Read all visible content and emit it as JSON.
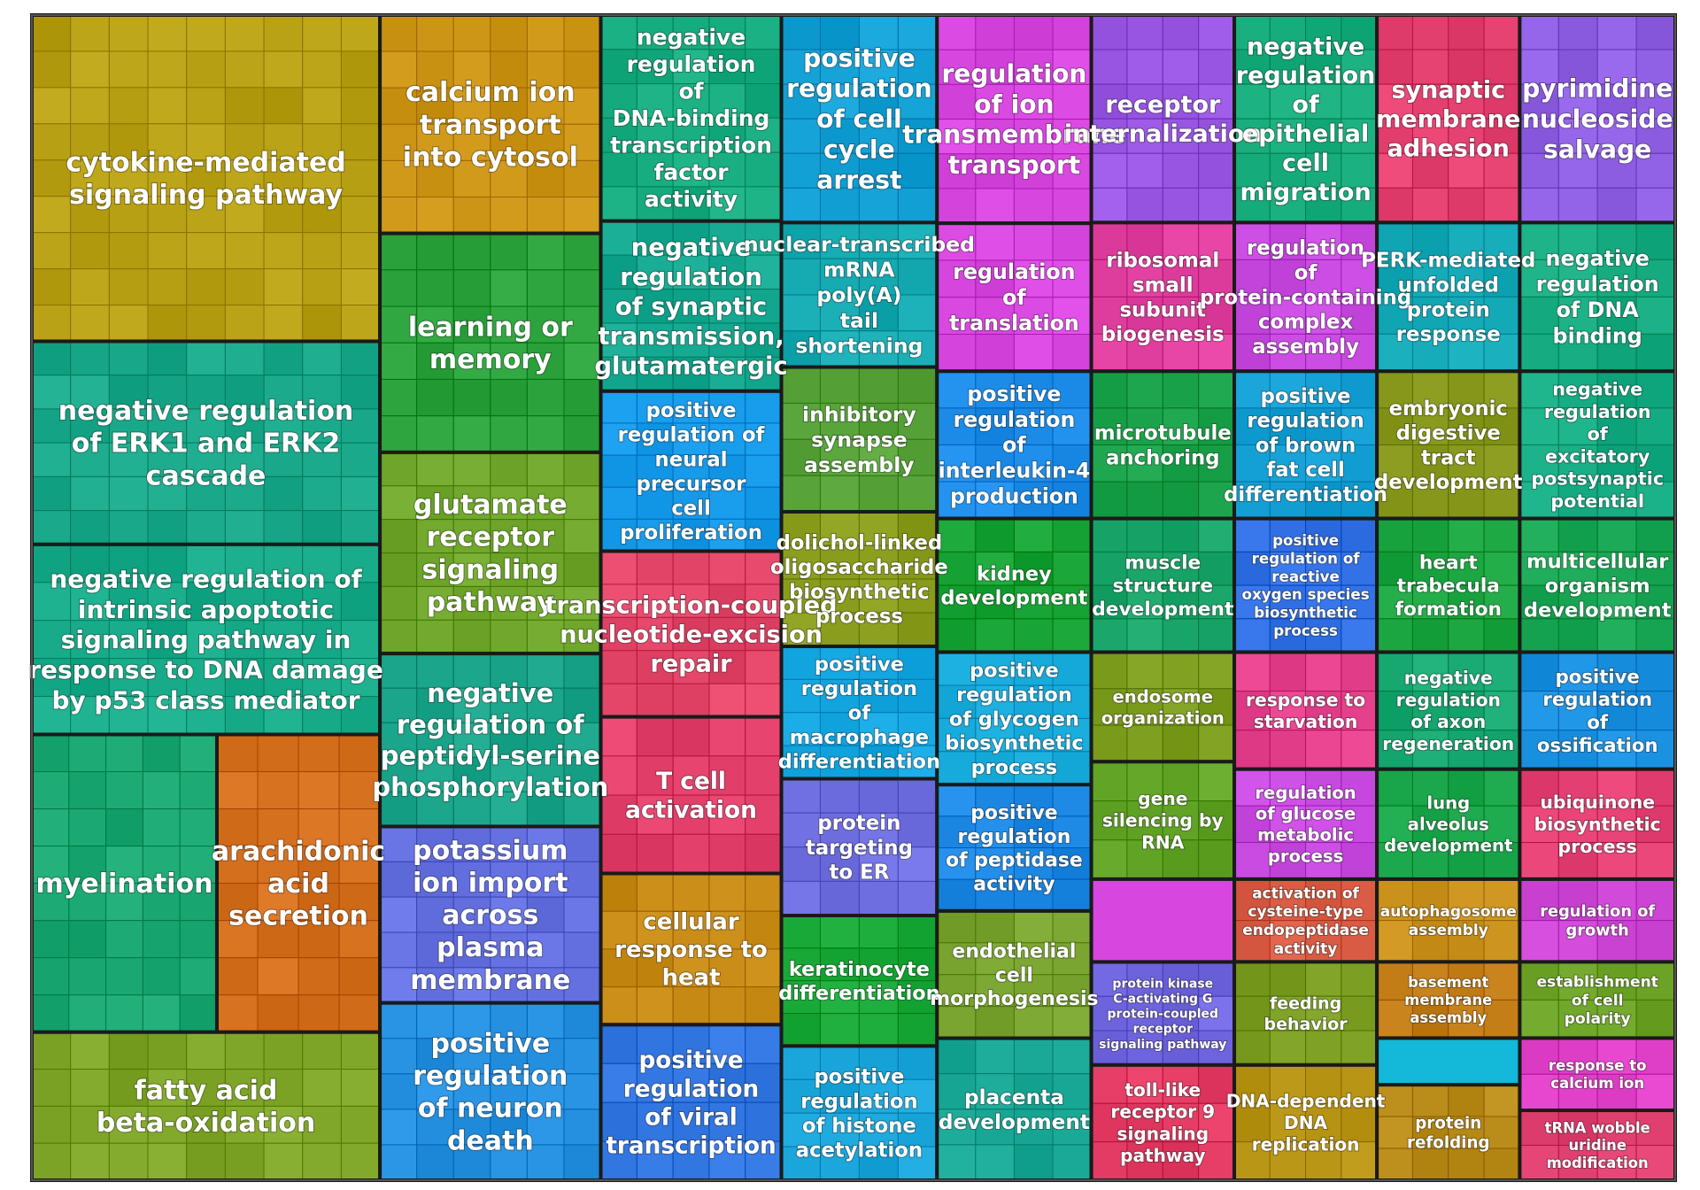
{
  "chart_data": {
    "type": "treemap",
    "title": "",
    "groups": [
      {
        "label": "cytokine-mediated signaling pathway",
        "color": "#b8a014",
        "rect": [
          0.0,
          0.0,
          0.2118,
          0.28
        ]
      },
      {
        "label": "negative regulation of ERK1 and ERK2 cascade",
        "color": "#1aa88a",
        "rect": [
          0.0,
          0.28,
          0.2118,
          0.4543
        ]
      },
      {
        "label": "negative regulation of intrinsic apoptotic signaling pathway in response to DNA damage by p53 class mediator",
        "color": "#17ab8a",
        "rect": [
          0.0,
          0.4543,
          0.2118,
          0.6174
        ]
      },
      {
        "label": "myelination",
        "color": "#1aa772",
        "rect": [
          0.0,
          0.6174,
          0.1126,
          0.8729
        ]
      },
      {
        "label": "arachidonic acid secretion",
        "color": "#d5701e",
        "rect": [
          0.1126,
          0.6174,
          0.2118,
          0.8729
        ]
      },
      {
        "label": "fatty acid beta-oxidation",
        "color": "#7fa528",
        "rect": [
          0.0,
          0.8729,
          0.2118,
          1.0
        ]
      },
      {
        "label": "calcium ion transport into cytosol",
        "color": "#cb9314",
        "rect": [
          0.2118,
          0.0,
          0.3462,
          0.1874
        ]
      },
      {
        "label": "learning or memory",
        "color": "#2ca23c",
        "rect": [
          0.2118,
          0.1874,
          0.3462,
          0.3753
        ]
      },
      {
        "label": "glutamate receptor signaling pathway",
        "color": "#6ea52a",
        "rect": [
          0.2118,
          0.3753,
          0.3462,
          0.548
        ]
      },
      {
        "label": "negative regulation of peptidyl-serine phosphorylation",
        "color": "#1aa48a",
        "rect": [
          0.2118,
          0.548,
          0.3462,
          0.6964
        ]
      },
      {
        "label": "potassium ion import across plasma membrane",
        "color": "#6672e2",
        "rect": [
          0.2118,
          0.6964,
          0.3462,
          0.8478
        ]
      },
      {
        "label": "positive regulation of neuron death",
        "color": "#2590e0",
        "rect": [
          0.2118,
          0.8478,
          0.3462,
          1.0
        ]
      },
      {
        "label": "negative regulation of DNA-binding transcription factor activity",
        "color": "#16ac80",
        "rect": [
          0.3462,
          0.0,
          0.4561,
          0.1768
        ]
      },
      {
        "label": "negative regulation of synaptic transmission, glutamatergic",
        "color": "#14a890",
        "rect": [
          0.3462,
          0.1768,
          0.4561,
          0.3228
        ]
      },
      {
        "label": "positive regulation of neural precursor cell proliferation",
        "color": "#1498e8",
        "rect": [
          0.3462,
          0.3228,
          0.4561,
          0.4601
        ]
      },
      {
        "label": "transcription-coupled nucleotide-excision repair",
        "color": "#e4466a",
        "rect": [
          0.3462,
          0.4601,
          0.4561,
          0.6023
        ]
      },
      {
        "label": "T cell activation",
        "color": "#e4406c",
        "rect": [
          0.3462,
          0.6023,
          0.4561,
          0.7367
        ]
      },
      {
        "label": "cellular response to heat",
        "color": "#c78a14",
        "rect": [
          0.3462,
          0.7367,
          0.4561,
          0.8665
        ]
      },
      {
        "label": "positive regulation of viral transcription",
        "color": "#3478e4",
        "rect": [
          0.3462,
          0.8665,
          0.4561,
          1.0
        ]
      },
      {
        "label": "positive regulation of cell cycle arrest",
        "color": "#129fd4",
        "rect": [
          0.4561,
          0.0,
          0.5508,
          0.1781
        ]
      },
      {
        "label": "nuclear-transcribed mRNA poly(A) tail shortening",
        "color": "#14a8b0",
        "rect": [
          0.4561,
          0.1781,
          0.5508,
          0.3021
        ]
      },
      {
        "label": "inhibitory synapse assembly",
        "color": "#58a43a",
        "rect": [
          0.4561,
          0.3021,
          0.5508,
          0.4263
        ]
      },
      {
        "label": "dolichol-linked oligosaccharide biosynthetic process",
        "color": "#8a9c1c",
        "rect": [
          0.4561,
          0.4263,
          0.5508,
          0.5418
        ]
      },
      {
        "label": "positive regulation of macrophage differentiation",
        "color": "#14a6e0",
        "rect": [
          0.4561,
          0.5418,
          0.5508,
          0.6554
        ]
      },
      {
        "label": "protein targeting to ER",
        "color": "#7070e2",
        "rect": [
          0.4561,
          0.6554,
          0.5508,
          0.7728
        ]
      },
      {
        "label": "keratinocyte differentiation",
        "color": "#18a838",
        "rect": [
          0.4561,
          0.7728,
          0.5508,
          0.8848
        ]
      },
      {
        "label": "positive regulation of histone acetylation",
        "color": "#18a4d8",
        "rect": [
          0.4561,
          0.8848,
          0.5508,
          1.0
        ]
      },
      {
        "label": "regulation of ion transmembrane transport",
        "color": "#d846e0",
        "rect": [
          0.5508,
          0.0,
          0.6447,
          0.1787
        ]
      },
      {
        "label": "regulation of translation",
        "color": "#d846e0",
        "rect": [
          0.5508,
          0.1787,
          0.6447,
          0.3057
        ]
      },
      {
        "label": "positive regulation of interleukin-4 production",
        "color": "#1c8ce8",
        "rect": [
          0.5508,
          0.3057,
          0.6447,
          0.4321
        ]
      },
      {
        "label": "kidney development",
        "color": "#16a234",
        "rect": [
          0.5508,
          0.4321,
          0.6447,
          0.5468
        ]
      },
      {
        "label": "positive regulation of glycogen biosynthetic process",
        "color": "#14a8d8",
        "rect": [
          0.5508,
          0.5468,
          0.6447,
          0.6605
        ]
      },
      {
        "label": "positive regulation of peptidase activity",
        "color": "#1c88e4",
        "rect": [
          0.5508,
          0.6605,
          0.6447,
          0.7689
        ]
      },
      {
        "label": "endothelial cell morphogenesis",
        "color": "#7aa530",
        "rect": [
          0.5508,
          0.7689,
          0.6447,
          0.8781
        ]
      },
      {
        "label": "placenta development",
        "color": "#1aa896",
        "rect": [
          0.5508,
          0.8781,
          0.6447,
          1.0
        ]
      },
      {
        "label": "receptor internalization",
        "color": "#9a58e4",
        "rect": [
          0.6447,
          0.0,
          0.7317,
          0.1781
        ]
      },
      {
        "label": "ribosomal small subunit biogenesis",
        "color": "#e240a0",
        "rect": [
          0.6447,
          0.1781,
          0.7317,
          0.3057
        ]
      },
      {
        "label": "microtubule anchoring",
        "color": "#1aa24a",
        "rect": [
          0.6447,
          0.3057,
          0.7317,
          0.4321
        ]
      },
      {
        "label": "muscle structure development",
        "color": "#1aa66a",
        "rect": [
          0.6447,
          0.4321,
          0.7317,
          0.5468
        ]
      },
      {
        "label": "endosome organization",
        "color": "#7c9c1e",
        "rect": [
          0.6447,
          0.5468,
          0.7317,
          0.6408
        ]
      },
      {
        "label": "gene silencing by RNA",
        "color": "#62a426",
        "rect": [
          0.6447,
          0.6408,
          0.7317,
          0.7416
        ]
      },
      {
        "label": "protein kinase C-activating G protein-coupled receptor signaling pathway",
        "color": "#7268e2",
        "rect": [
          0.6447,
          0.8126,
          0.7317,
          0.9011
        ]
      },
      {
        "label": "toll-like receptor 9 signaling pathway",
        "color": "#e43c64",
        "rect": [
          0.6447,
          0.9011,
          0.7317,
          1.0
        ]
      },
      {
        "label": "negative regulation of epithelial cell migration",
        "color": "#16ab7a",
        "rect": [
          0.7317,
          0.0,
          0.8185,
          0.1781
        ]
      },
      {
        "label": "regulation of protein-containing complex assembly",
        "color": "#c84ae0",
        "rect": [
          0.7317,
          0.1781,
          0.8185,
          0.3057
        ]
      },
      {
        "label": "positive regulation of brown fat cell differentiation",
        "color": "#14a0d4",
        "rect": [
          0.7317,
          0.3057,
          0.8185,
          0.4321
        ]
      },
      {
        "label": "positive regulation of reactive oxygen species biosynthetic process",
        "color": "#3070e4",
        "rect": [
          0.7317,
          0.4321,
          0.8185,
          0.5468
        ]
      },
      {
        "label": "response to starvation",
        "color": "#e4408c",
        "rect": [
          0.7317,
          0.5468,
          0.8185,
          0.6472
        ]
      },
      {
        "label": "regulation of glucose metabolic process",
        "color": "#c84ae0",
        "rect": [
          0.7317,
          0.6472,
          0.8185,
          0.7416
        ]
      },
      {
        "label": "activation of cysteine-type endopeptidase activity",
        "color": "#dc5e46",
        "rect": [
          0.7317,
          0.7416,
          0.8185,
          0.8126
        ]
      },
      {
        "label": "feeding behavior",
        "color": "#7c9e22",
        "rect": [
          0.7317,
          0.8126,
          0.8185,
          0.9011
        ]
      },
      {
        "label": "DNA-dependent DNA replication",
        "color": "#b89414",
        "rect": [
          0.7317,
          0.9011,
          0.8185,
          1.0
        ]
      },
      {
        "label": "synaptic membrane adhesion",
        "color": "#e44070",
        "rect": [
          0.8185,
          0.0,
          0.9054,
          0.1781
        ]
      },
      {
        "label": "PERK-mediated unfolded protein response",
        "color": "#14aab8",
        "rect": [
          0.8185,
          0.1781,
          0.9054,
          0.3057
        ]
      },
      {
        "label": "embryonic digestive tract development",
        "color": "#8a9a1e",
        "rect": [
          0.8185,
          0.3057,
          0.9054,
          0.4321
        ]
      },
      {
        "label": "heart trabecula formation",
        "color": "#1aa440",
        "rect": [
          0.8185,
          0.4321,
          0.9054,
          0.5468
        ]
      },
      {
        "label": "negative regulation of axon regeneration",
        "color": "#18a872",
        "rect": [
          0.8185,
          0.5468,
          0.9054,
          0.6472
        ]
      },
      {
        "label": "lung alveolus development",
        "color": "#18a448",
        "rect": [
          0.8185,
          0.6472,
          0.9054,
          0.7416
        ]
      },
      {
        "label": "autophagosome assembly",
        "color": "#c8901a",
        "rect": [
          0.8185,
          0.7416,
          0.9054,
          0.8126
        ]
      },
      {
        "label": "basement membrane assembly",
        "color": "#c07a14",
        "rect": [
          0.8185,
          0.8126,
          0.9054,
          0.878
        ]
      },
      {
        "label": "protein refolding",
        "color": "#b88a18",
        "rect": [
          0.8185,
          0.918,
          0.9054,
          1.0
        ]
      },
      {
        "label": "pyrimidine nucleoside salvage",
        "color": "#9060e4",
        "rect": [
          0.9054,
          0.0,
          1.0,
          0.1781
        ]
      },
      {
        "label": "negative regulation of DNA binding",
        "color": "#16ab80",
        "rect": [
          0.9054,
          0.1781,
          1.0,
          0.3057
        ]
      },
      {
        "label": "negative regulation of excitatory postsynaptic potential",
        "color": "#16ac84",
        "rect": [
          0.9054,
          0.3057,
          1.0,
          0.4321
        ]
      },
      {
        "label": "multicellular organism development",
        "color": "#18a654",
        "rect": [
          0.9054,
          0.4321,
          1.0,
          0.5468
        ]
      },
      {
        "label": "positive regulation of ossification",
        "color": "#1a90e0",
        "rect": [
          0.9054,
          0.5468,
          1.0,
          0.6472
        ]
      },
      {
        "label": "ubiquinone biosynthetic process",
        "color": "#e44074",
        "rect": [
          0.9054,
          0.6472,
          1.0,
          0.7416
        ]
      },
      {
        "label": "regulation of growth",
        "color": "#d048d8",
        "rect": [
          0.9054,
          0.7416,
          1.0,
          0.8126
        ]
      },
      {
        "label": "establishment of cell polarity",
        "color": "#6ea428",
        "rect": [
          0.9054,
          0.8126,
          1.0,
          0.878
        ]
      },
      {
        "label": "response to calcium ion",
        "color": "#e040c8",
        "rect": [
          0.9054,
          0.878,
          1.0,
          0.94
        ]
      },
      {
        "label": "tRNA wobble uridine modification",
        "color": "#e04070",
        "rect": [
          0.9054,
          0.94,
          1.0,
          1.0
        ]
      }
    ]
  }
}
